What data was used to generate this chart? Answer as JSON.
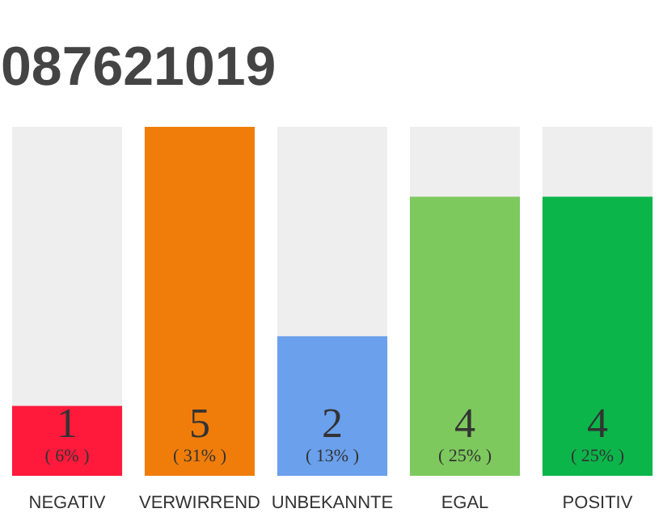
{
  "chart_data": {
    "type": "bar",
    "title": "087621019",
    "categories": [
      "NEGATIV",
      "VERWIRREND",
      "UNBEKANNTE",
      "EGAL",
      "POSITIV"
    ],
    "values": [
      1,
      5,
      2,
      4,
      4
    ],
    "colors": [
      "#ff1a3c",
      "#f07d0a",
      "#6aa0ec",
      "#7dc95e",
      "#0bb54a"
    ],
    "data_labels": true,
    "annotations": [
      "( 6% )",
      "( 31% )",
      "( 13% )",
      "( 25% )",
      "( 25% )"
    ],
    "grid": false
  }
}
